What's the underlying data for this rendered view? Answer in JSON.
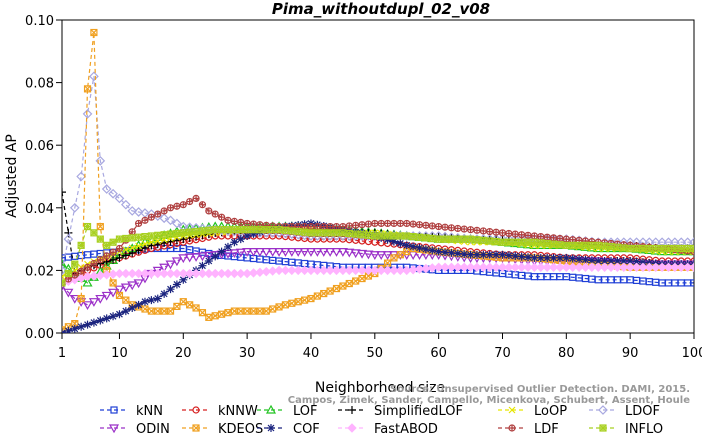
{
  "chart_data": {
    "type": "line",
    "title": "Pima_withoutdupl_02_v08",
    "xlabel": "Neighborhood size",
    "ylabel": "Adjusted AP",
    "xlim": [
      1,
      100
    ],
    "ylim": [
      0,
      0.1
    ],
    "xticks": [
      1,
      10,
      20,
      30,
      40,
      50,
      60,
      70,
      80,
      90,
      100
    ],
    "yticks": [
      0.0,
      0.02,
      0.04,
      0.06,
      0.08,
      0.1
    ],
    "yticklabels": [
      "0.00",
      "0.02",
      "0.04",
      "0.06",
      "0.08",
      "0.10"
    ],
    "grid": false,
    "legend_position": "bottom",
    "watermark": [
      "Source: Unsupervised Outlier Detection. DAMI, 2015.",
      "Campos, Zimek, Sander, Campello, Micenkova, Schubert, Assent, Houle"
    ],
    "series": [
      {
        "name": "kNN",
        "color": "#1f3fd6",
        "marker": "square",
        "points": [
          [
            1,
            0.024
          ],
          [
            5,
            0.025
          ],
          [
            10,
            0.026
          ],
          [
            15,
            0.027
          ],
          [
            20,
            0.027
          ],
          [
            25,
            0.025
          ],
          [
            30,
            0.024
          ],
          [
            35,
            0.023
          ],
          [
            40,
            0.022
          ],
          [
            45,
            0.021
          ],
          [
            50,
            0.021
          ],
          [
            55,
            0.021
          ],
          [
            60,
            0.02
          ],
          [
            65,
            0.02
          ],
          [
            70,
            0.019
          ],
          [
            75,
            0.018
          ],
          [
            80,
            0.018
          ],
          [
            85,
            0.017
          ],
          [
            90,
            0.017
          ],
          [
            95,
            0.016
          ],
          [
            100,
            0.016
          ]
        ]
      },
      {
        "name": "kNNW",
        "color": "#d62020",
        "marker": "circle",
        "points": [
          [
            1,
            0.016
          ],
          [
            5,
            0.02
          ],
          [
            10,
            0.024
          ],
          [
            15,
            0.027
          ],
          [
            20,
            0.029
          ],
          [
            25,
            0.031
          ],
          [
            30,
            0.031
          ],
          [
            35,
            0.031
          ],
          [
            40,
            0.03
          ],
          [
            45,
            0.03
          ],
          [
            50,
            0.029
          ],
          [
            55,
            0.028
          ],
          [
            60,
            0.027
          ],
          [
            65,
            0.026
          ],
          [
            70,
            0.025
          ],
          [
            75,
            0.025
          ],
          [
            80,
            0.024
          ],
          [
            85,
            0.024
          ],
          [
            90,
            0.024
          ],
          [
            95,
            0.023
          ],
          [
            100,
            0.023
          ]
        ]
      },
      {
        "name": "LOF",
        "color": "#22c322",
        "marker": "triangle-up",
        "points": [
          [
            1,
            0.022
          ],
          [
            5,
            0.016
          ],
          [
            10,
            0.025
          ],
          [
            15,
            0.03
          ],
          [
            20,
            0.033
          ],
          [
            25,
            0.034
          ],
          [
            30,
            0.034
          ],
          [
            35,
            0.034
          ],
          [
            40,
            0.034
          ],
          [
            45,
            0.033
          ],
          [
            50,
            0.032
          ],
          [
            55,
            0.031
          ],
          [
            60,
            0.03
          ],
          [
            65,
            0.03
          ],
          [
            70,
            0.029
          ],
          [
            75,
            0.028
          ],
          [
            80,
            0.028
          ],
          [
            85,
            0.027
          ],
          [
            90,
            0.027
          ],
          [
            95,
            0.026
          ],
          [
            100,
            0.026
          ]
        ]
      },
      {
        "name": "SimplifiedLOF",
        "color": "#000000",
        "marker": "plus",
        "points": [
          [
            1,
            0.045
          ],
          [
            3,
            0.019
          ],
          [
            5,
            0.021
          ],
          [
            10,
            0.024
          ],
          [
            15,
            0.028
          ],
          [
            20,
            0.03
          ],
          [
            25,
            0.032
          ],
          [
            30,
            0.033
          ],
          [
            35,
            0.033
          ],
          [
            40,
            0.032
          ],
          [
            45,
            0.032
          ],
          [
            50,
            0.032
          ],
          [
            55,
            0.031
          ],
          [
            60,
            0.031
          ],
          [
            65,
            0.03
          ],
          [
            70,
            0.03
          ],
          [
            75,
            0.029
          ],
          [
            80,
            0.029
          ],
          [
            85,
            0.028
          ],
          [
            90,
            0.028
          ],
          [
            95,
            0.027
          ],
          [
            100,
            0.027
          ]
        ]
      },
      {
        "name": "LoOP",
        "color": "#e6e600",
        "marker": "x",
        "points": [
          [
            1,
            0.018
          ],
          [
            5,
            0.022
          ],
          [
            10,
            0.026
          ],
          [
            15,
            0.029
          ],
          [
            20,
            0.031
          ],
          [
            25,
            0.032
          ],
          [
            30,
            0.033
          ],
          [
            35,
            0.033
          ],
          [
            40,
            0.033
          ],
          [
            45,
            0.032
          ],
          [
            50,
            0.032
          ],
          [
            55,
            0.031
          ],
          [
            60,
            0.03
          ],
          [
            65,
            0.029
          ],
          [
            70,
            0.029
          ],
          [
            75,
            0.028
          ],
          [
            80,
            0.028
          ],
          [
            85,
            0.027
          ],
          [
            90,
            0.027
          ],
          [
            95,
            0.026
          ],
          [
            100,
            0.026
          ]
        ]
      },
      {
        "name": "LDOF",
        "color": "#a8a8e0",
        "marker": "diamond",
        "points": [
          [
            1,
            0.02
          ],
          [
            3,
            0.04
          ],
          [
            4,
            0.05
          ],
          [
            5,
            0.07
          ],
          [
            6,
            0.082
          ],
          [
            7,
            0.055
          ],
          [
            8,
            0.046
          ],
          [
            10,
            0.043
          ],
          [
            12,
            0.039
          ],
          [
            15,
            0.038
          ],
          [
            18,
            0.036
          ],
          [
            20,
            0.034
          ],
          [
            25,
            0.033
          ],
          [
            30,
            0.032
          ],
          [
            35,
            0.032
          ],
          [
            40,
            0.031
          ],
          [
            45,
            0.031
          ],
          [
            50,
            0.031
          ],
          [
            55,
            0.031
          ],
          [
            60,
            0.031
          ],
          [
            65,
            0.03
          ],
          [
            70,
            0.03
          ],
          [
            75,
            0.03
          ],
          [
            80,
            0.03
          ],
          [
            85,
            0.029
          ],
          [
            90,
            0.029
          ],
          [
            95,
            0.029
          ],
          [
            100,
            0.029
          ]
        ]
      },
      {
        "name": "ODIN",
        "color": "#9b30c8",
        "marker": "triangle-down",
        "points": [
          [
            1,
            0.015
          ],
          [
            3,
            0.011
          ],
          [
            5,
            0.009
          ],
          [
            8,
            0.012
          ],
          [
            10,
            0.014
          ],
          [
            13,
            0.016
          ],
          [
            15,
            0.019
          ],
          [
            18,
            0.022
          ],
          [
            20,
            0.024
          ],
          [
            25,
            0.025
          ],
          [
            30,
            0.026
          ],
          [
            35,
            0.026
          ],
          [
            40,
            0.026
          ],
          [
            45,
            0.026
          ],
          [
            50,
            0.025
          ],
          [
            55,
            0.025
          ],
          [
            60,
            0.025
          ],
          [
            65,
            0.024
          ],
          [
            70,
            0.024
          ],
          [
            75,
            0.023
          ],
          [
            80,
            0.023
          ],
          [
            85,
            0.023
          ],
          [
            90,
            0.022
          ],
          [
            95,
            0.022
          ],
          [
            100,
            0.022
          ]
        ]
      },
      {
        "name": "KDEOS",
        "color": "#f0a020",
        "marker": "hourglass",
        "points": [
          [
            1,
            0.001
          ],
          [
            2,
            0.002
          ],
          [
            3,
            0.003
          ],
          [
            4,
            0.011
          ],
          [
            5,
            0.078
          ],
          [
            6,
            0.096
          ],
          [
            7,
            0.034
          ],
          [
            8,
            0.02
          ],
          [
            10,
            0.012
          ],
          [
            12,
            0.009
          ],
          [
            15,
            0.007
          ],
          [
            18,
            0.007
          ],
          [
            20,
            0.01
          ],
          [
            22,
            0.008
          ],
          [
            24,
            0.005
          ],
          [
            26,
            0.006
          ],
          [
            28,
            0.007
          ],
          [
            30,
            0.007
          ],
          [
            33,
            0.007
          ],
          [
            36,
            0.009
          ],
          [
            40,
            0.011
          ],
          [
            45,
            0.015
          ],
          [
            50,
            0.019
          ],
          [
            53,
            0.024
          ],
          [
            56,
            0.027
          ],
          [
            60,
            0.026
          ],
          [
            65,
            0.025
          ],
          [
            70,
            0.024
          ],
          [
            75,
            0.024
          ],
          [
            80,
            0.023
          ],
          [
            85,
            0.022
          ],
          [
            90,
            0.021
          ],
          [
            95,
            0.021
          ],
          [
            100,
            0.021
          ]
        ]
      },
      {
        "name": "COF",
        "color": "#1a237e",
        "marker": "asterisk",
        "points": [
          [
            1,
            0.0
          ],
          [
            4,
            0.002
          ],
          [
            7,
            0.004
          ],
          [
            10,
            0.006
          ],
          [
            12,
            0.008
          ],
          [
            14,
            0.01
          ],
          [
            16,
            0.011
          ],
          [
            18,
            0.014
          ],
          [
            20,
            0.017
          ],
          [
            22,
            0.02
          ],
          [
            24,
            0.023
          ],
          [
            26,
            0.026
          ],
          [
            28,
            0.029
          ],
          [
            30,
            0.031
          ],
          [
            33,
            0.033
          ],
          [
            36,
            0.034
          ],
          [
            40,
            0.035
          ],
          [
            45,
            0.033
          ],
          [
            50,
            0.031
          ],
          [
            55,
            0.028
          ],
          [
            60,
            0.026
          ],
          [
            65,
            0.025
          ],
          [
            70,
            0.025
          ],
          [
            75,
            0.024
          ],
          [
            80,
            0.024
          ],
          [
            85,
            0.023
          ],
          [
            90,
            0.023
          ],
          [
            95,
            0.022
          ],
          [
            100,
            0.022
          ]
        ]
      },
      {
        "name": "FastABOD",
        "color": "#ffb3ff",
        "marker": "diamond-filled",
        "points": [
          [
            1,
            0.016
          ],
          [
            5,
            0.018
          ],
          [
            10,
            0.019
          ],
          [
            15,
            0.019
          ],
          [
            20,
            0.019
          ],
          [
            25,
            0.019
          ],
          [
            30,
            0.019
          ],
          [
            35,
            0.02
          ],
          [
            40,
            0.02
          ],
          [
            45,
            0.02
          ],
          [
            50,
            0.02
          ],
          [
            55,
            0.02
          ],
          [
            60,
            0.021
          ],
          [
            65,
            0.021
          ],
          [
            70,
            0.021
          ],
          [
            75,
            0.021
          ],
          [
            80,
            0.021
          ],
          [
            85,
            0.021
          ],
          [
            90,
            0.021
          ],
          [
            95,
            0.021
          ],
          [
            100,
            0.021
          ]
        ]
      },
      {
        "name": "LDF",
        "color": "#b04040",
        "marker": "circle-plus",
        "points": [
          [
            1,
            0.016
          ],
          [
            5,
            0.021
          ],
          [
            10,
            0.027
          ],
          [
            13,
            0.035
          ],
          [
            15,
            0.037
          ],
          [
            18,
            0.04
          ],
          [
            20,
            0.041
          ],
          [
            22,
            0.043
          ],
          [
            24,
            0.039
          ],
          [
            27,
            0.036
          ],
          [
            30,
            0.035
          ],
          [
            35,
            0.034
          ],
          [
            40,
            0.034
          ],
          [
            45,
            0.034
          ],
          [
            50,
            0.035
          ],
          [
            55,
            0.035
          ],
          [
            60,
            0.034
          ],
          [
            65,
            0.033
          ],
          [
            70,
            0.032
          ],
          [
            75,
            0.031
          ],
          [
            80,
            0.03
          ],
          [
            85,
            0.029
          ],
          [
            90,
            0.028
          ],
          [
            95,
            0.027
          ],
          [
            100,
            0.026
          ]
        ]
      },
      {
        "name": "INFLO",
        "color": "#a8d020",
        "marker": "starsquare",
        "points": [
          [
            1,
            0.016
          ],
          [
            3,
            0.022
          ],
          [
            5,
            0.034
          ],
          [
            6,
            0.032
          ],
          [
            8,
            0.028
          ],
          [
            10,
            0.03
          ],
          [
            15,
            0.031
          ],
          [
            20,
            0.032
          ],
          [
            25,
            0.033
          ],
          [
            30,
            0.033
          ],
          [
            35,
            0.033
          ],
          [
            40,
            0.032
          ],
          [
            45,
            0.032
          ],
          [
            50,
            0.031
          ],
          [
            55,
            0.031
          ],
          [
            60,
            0.03
          ],
          [
            65,
            0.03
          ],
          [
            70,
            0.029
          ],
          [
            75,
            0.029
          ],
          [
            80,
            0.028
          ],
          [
            85,
            0.028
          ],
          [
            90,
            0.027
          ],
          [
            95,
            0.027
          ],
          [
            100,
            0.027
          ]
        ]
      }
    ]
  }
}
